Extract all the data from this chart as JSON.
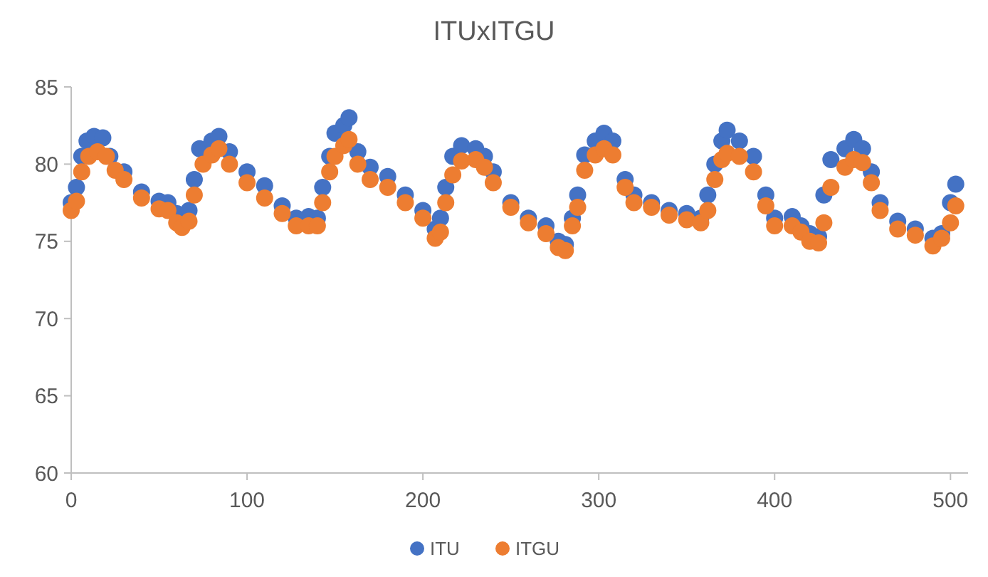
{
  "chart_data": {
    "type": "scatter",
    "title": "ITUxITGU",
    "marker": "circle",
    "legend": "bottom",
    "xlim": [
      0,
      510
    ],
    "xticks": [
      0,
      100,
      200,
      300,
      400,
      500
    ],
    "ylim": [
      60,
      85
    ],
    "yticks": [
      60,
      65,
      70,
      75,
      80,
      85
    ],
    "series": [
      {
        "name": "ITU",
        "color": "#4472c4",
        "x": [
          0,
          3,
          6,
          9,
          13,
          18,
          22,
          30,
          40,
          50,
          55,
          60,
          67,
          70,
          73,
          80,
          84,
          90,
          100,
          110,
          120,
          128,
          135,
          140,
          143,
          147,
          150,
          155,
          158,
          163,
          170,
          180,
          190,
          200,
          207,
          210,
          213,
          217,
          222,
          230,
          235,
          240,
          250,
          260,
          270,
          277,
          281,
          285,
          288,
          292,
          298,
          303,
          308,
          315,
          320,
          330,
          340,
          350,
          358,
          362,
          366,
          370,
          373,
          380,
          388,
          395,
          400,
          410,
          415,
          420,
          425,
          428,
          432,
          440,
          445,
          450,
          455,
          460,
          470,
          480,
          490,
          495,
          500,
          503
        ],
        "values": [
          77.5,
          78.5,
          80.5,
          81.5,
          81.8,
          81.7,
          80.5,
          79.5,
          78.2,
          77.6,
          77.5,
          76.8,
          77,
          79,
          81,
          81.5,
          81.8,
          80.8,
          79.5,
          78.6,
          77.3,
          76.5,
          76.6,
          76.5,
          78.5,
          80.5,
          82,
          82.5,
          83,
          80.8,
          79.8,
          79.2,
          78,
          77,
          75.8,
          76.5,
          78.5,
          80.5,
          81.2,
          81,
          80.5,
          79.5,
          77.5,
          76.5,
          76,
          75,
          74.8,
          76.5,
          78,
          80.6,
          81.5,
          82,
          81.5,
          79,
          78,
          77.5,
          77,
          76.8,
          76.5,
          78,
          80,
          81.5,
          82.2,
          81.5,
          80.5,
          78,
          76.5,
          76.6,
          76,
          75.5,
          75.3,
          78,
          80.3,
          81,
          81.6,
          81,
          79.5,
          77.5,
          76.3,
          75.8,
          75.2,
          75.5,
          77.5,
          78.7
        ]
      },
      {
        "name": "ITGU",
        "color": "#ed7d31",
        "x": [
          0,
          3,
          6,
          10,
          15,
          20,
          25,
          30,
          40,
          50,
          55,
          60,
          63,
          67,
          70,
          75,
          80,
          84,
          90,
          100,
          110,
          120,
          128,
          135,
          140,
          143,
          147,
          150,
          155,
          158,
          163,
          170,
          180,
          190,
          200,
          207,
          210,
          213,
          217,
          222,
          230,
          235,
          240,
          250,
          260,
          270,
          277,
          281,
          285,
          288,
          292,
          298,
          303,
          308,
          315,
          320,
          330,
          340,
          350,
          358,
          362,
          366,
          370,
          373,
          380,
          388,
          395,
          400,
          410,
          415,
          420,
          425,
          428,
          432,
          440,
          445,
          450,
          455,
          460,
          470,
          480,
          490,
          495,
          500,
          503
        ],
        "values": [
          77,
          77.6,
          79.5,
          80.5,
          80.8,
          80.5,
          79.6,
          79,
          77.8,
          77.1,
          77,
          76.2,
          75.9,
          76.3,
          78,
          80,
          80.6,
          81,
          80,
          78.8,
          77.8,
          76.8,
          76,
          76,
          76,
          77.5,
          79.5,
          80.5,
          81.2,
          81.6,
          80,
          79,
          78.5,
          77.5,
          76.5,
          75.2,
          75.6,
          77.5,
          79.3,
          80.2,
          80.3,
          79.8,
          78.8,
          77.2,
          76.2,
          75.5,
          74.6,
          74.4,
          76,
          77.2,
          79.6,
          80.6,
          81,
          80.6,
          78.5,
          77.5,
          77.2,
          76.7,
          76.4,
          76.2,
          77,
          79,
          80.3,
          80.7,
          80.5,
          79.5,
          77.3,
          76,
          76,
          75.6,
          75,
          74.9,
          76.2,
          78.5,
          79.8,
          80.3,
          80.1,
          78.8,
          77,
          75.8,
          75.4,
          74.7,
          75.2,
          76.2,
          77.3
        ]
      }
    ]
  }
}
